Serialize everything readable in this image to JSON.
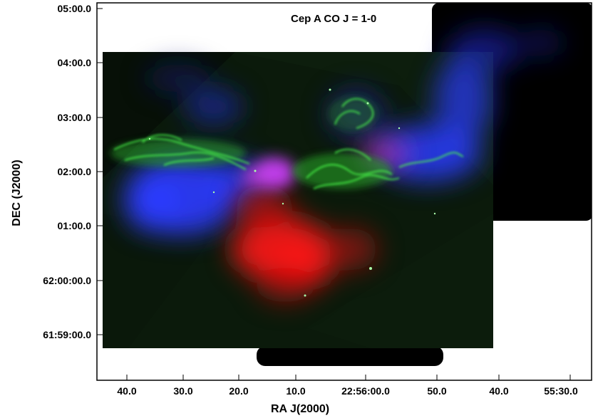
{
  "title": "Cep A CO J = 1-0",
  "axes": {
    "xlabel": "RA  J(2000)",
    "ylabel": "DEC  (J2000)",
    "x_ticks": [
      "40.0",
      "30.0",
      "20.0",
      "10.0",
      "22:56:00.0",
      "50.0",
      "40.0",
      "55:30.0"
    ],
    "y_ticks": [
      "05:00.0",
      "04:00.0",
      "03:00.0",
      "02:00.0",
      "01:00.0",
      "62:00:00.0",
      "61:59:00.0"
    ]
  },
  "colors": {
    "frame": "#000000",
    "background": "#ffffff",
    "field": "#0b1a0b",
    "blue_emission": "#2b3cff",
    "red_emission": "#ff1a1a",
    "green_emission": "#4cff4c",
    "magenta_emission": "#d040ff"
  },
  "image": {
    "type": "astronomical composite image",
    "channels": [
      "red",
      "green",
      "blue"
    ]
  }
}
